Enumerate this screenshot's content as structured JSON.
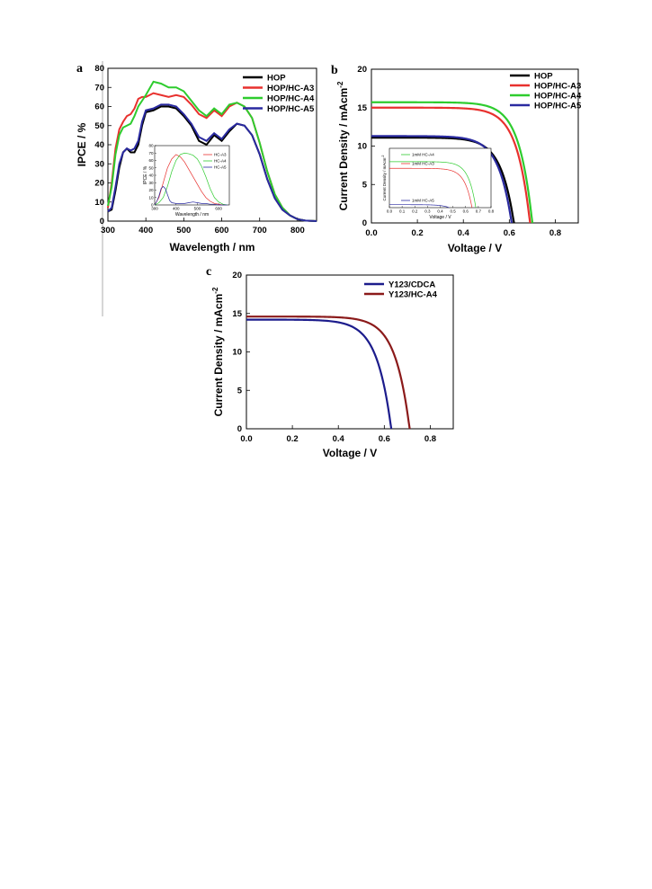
{
  "chart_data": [
    {
      "panel": "a",
      "type": "line",
      "xlabel": "Wavelength / nm",
      "ylabel": "IPCE / %",
      "xlim": [
        300,
        850
      ],
      "ylim": [
        0,
        80
      ],
      "xticks": [
        300,
        400,
        500,
        600,
        700,
        800
      ],
      "yticks": [
        0,
        10,
        20,
        30,
        40,
        50,
        60,
        70,
        80
      ],
      "legend_position": "top-right",
      "series": [
        {
          "name": "HOP",
          "color": "#000000",
          "x": [
            300,
            310,
            320,
            330,
            340,
            350,
            360,
            370,
            380,
            390,
            400,
            420,
            440,
            460,
            480,
            500,
            520,
            540,
            560,
            580,
            600,
            620,
            640,
            660,
            680,
            700,
            720,
            740,
            760,
            780,
            800,
            820,
            850
          ],
          "y": [
            5,
            6,
            16,
            28,
            36,
            38,
            36,
            36,
            40,
            50,
            57,
            58,
            60,
            60,
            59,
            55,
            50,
            42,
            40,
            45,
            42,
            47,
            51,
            50,
            45,
            35,
            22,
            12,
            6,
            3,
            1,
            0.3,
            0
          ]
        },
        {
          "name": "HOP/HC-A3",
          "color": "#e8312e",
          "x": [
            300,
            310,
            320,
            330,
            340,
            350,
            360,
            370,
            380,
            390,
            400,
            420,
            440,
            460,
            480,
            500,
            520,
            540,
            560,
            580,
            600,
            620,
            640,
            660,
            680,
            700,
            720,
            740,
            760,
            780,
            800,
            820,
            850
          ],
          "y": [
            7,
            20,
            38,
            48,
            52,
            55,
            56,
            59,
            64,
            65,
            65,
            67,
            66,
            65,
            66,
            65,
            61,
            56,
            54,
            58,
            55,
            60,
            62,
            60,
            54,
            41,
            26,
            14,
            7,
            3,
            1,
            0.3,
            0
          ]
        },
        {
          "name": "HOP/HC-A4",
          "color": "#2ecc2e",
          "x": [
            300,
            310,
            320,
            330,
            340,
            350,
            360,
            370,
            380,
            390,
            400,
            420,
            440,
            460,
            480,
            500,
            520,
            540,
            560,
            580,
            600,
            620,
            640,
            660,
            680,
            700,
            720,
            740,
            760,
            780,
            800,
            820,
            850
          ],
          "y": [
            8,
            18,
            35,
            45,
            49,
            50,
            51,
            55,
            60,
            63,
            66,
            73,
            72,
            70,
            70,
            68,
            63,
            58,
            55,
            59,
            56,
            61,
            62,
            60,
            54,
            41,
            26,
            14,
            7,
            3,
            1,
            0.3,
            0
          ]
        },
        {
          "name": "HOP/HC-A5",
          "color": "#2a2aa0",
          "x": [
            300,
            310,
            320,
            330,
            340,
            350,
            360,
            370,
            380,
            390,
            400,
            420,
            440,
            460,
            480,
            500,
            520,
            540,
            560,
            580,
            600,
            620,
            640,
            660,
            680,
            700,
            720,
            740,
            760,
            780,
            800,
            820,
            850
          ],
          "y": [
            5,
            7,
            18,
            30,
            36,
            38,
            37,
            38,
            42,
            52,
            58,
            59,
            61,
            61,
            60,
            56,
            51,
            44,
            42,
            46,
            43,
            48,
            51,
            50,
            45,
            35,
            22,
            12,
            6,
            3,
            1,
            0.3,
            0
          ]
        }
      ],
      "inset": {
        "type": "line",
        "xlabel": "Wavelength / nm",
        "ylabel": "IPCE / %",
        "xlim": [
          300,
          650
        ],
        "ylim": [
          0,
          80
        ],
        "xticks": [
          300,
          400,
          500,
          600
        ],
        "yticks": [
          0,
          10,
          20,
          30,
          40,
          50,
          60,
          70,
          80
        ],
        "series": [
          {
            "name": "HC-A3",
            "color": "#e8312e",
            "x": [
              300,
              320,
              340,
              360,
              380,
              400,
              420,
              440,
              460,
              480,
              500,
              520,
              540,
              560,
              580,
              600,
              620,
              640
            ],
            "y": [
              0,
              10,
              30,
              50,
              62,
              68,
              65,
              58,
              48,
              38,
              28,
              18,
              10,
              5,
              2,
              1,
              0,
              0
            ]
          },
          {
            "name": "HC-A4",
            "color": "#2ecc2e",
            "x": [
              300,
              320,
              340,
              360,
              380,
              400,
              420,
              440,
              460,
              480,
              500,
              520,
              540,
              560,
              580,
              600,
              620,
              640
            ],
            "y": [
              0,
              3,
              10,
              25,
              45,
              60,
              68,
              70,
              69,
              67,
              62,
              52,
              38,
              22,
              10,
              4,
              1,
              0
            ]
          },
          {
            "name": "HC-A5",
            "color": "#2a2aa0",
            "x": [
              300,
              310,
              320,
              330,
              340,
              350,
              360,
              370,
              380,
              400,
              420,
              440,
              460,
              480,
              500,
              520,
              540,
              560,
              580,
              600,
              620,
              640
            ],
            "y": [
              0,
              5,
              12,
              22,
              25,
              22,
              14,
              6,
              3,
              2,
              2,
              2,
              3,
              4,
              3,
              2,
              2,
              1,
              1,
              0,
              0,
              0
            ]
          }
        ]
      }
    },
    {
      "panel": "b",
      "type": "line",
      "xlabel": "Voltage / V",
      "ylabel": "Current Density / mAcm",
      "ylabel_sup": "-2",
      "xlim": [
        0.0,
        0.9
      ],
      "ylim": [
        0,
        20
      ],
      "xticks": [
        "0.0",
        "0.2",
        "0.4",
        "0.6",
        "0.8"
      ],
      "yticks": [
        0,
        5,
        10,
        15,
        20
      ],
      "legend_position": "top-right",
      "series": [
        {
          "name": "HOP",
          "color": "#000000",
          "jsc": 11.1,
          "voc": 0.62,
          "n": 2.2
        },
        {
          "name": "HOP/HC-A3",
          "color": "#e8312e",
          "jsc": 15.0,
          "voc": 0.69,
          "n": 2.2
        },
        {
          "name": "HOP/HC-A4",
          "color": "#2ecc2e",
          "jsc": 15.7,
          "voc": 0.7,
          "n": 2.2
        },
        {
          "name": "HOP/HC-A5",
          "color": "#2a2aa0",
          "jsc": 11.3,
          "voc": 0.61,
          "n": 2.2
        }
      ],
      "inset": {
        "xlabel": "Voltage / V",
        "ylabel": "Current Density / mAcm",
        "ylabel_sup": "-2",
        "xlim": [
          0.0,
          0.8
        ],
        "ylim": [
          0,
          8
        ],
        "xticks": [
          "0.0",
          "0.1",
          "0.2",
          "0.3",
          "0.4",
          "0.5",
          "0.6",
          "0.7",
          "0.8"
        ],
        "series": [
          {
            "name": "1mM HC-A4",
            "color": "#2ecc2e",
            "jsc": 6.2,
            "voc": 0.68,
            "n": 2.2
          },
          {
            "name": "1mM HC-A3",
            "color": "#e8312e",
            "jsc": 5.3,
            "voc": 0.65,
            "n": 2.2
          },
          {
            "name": "1mM HC-A5",
            "color": "#2a2aa0",
            "jsc": 0.4,
            "voc": 0.47,
            "n": 2.2
          }
        ]
      }
    },
    {
      "panel": "c",
      "type": "line",
      "xlabel": "Voltage / V",
      "ylabel": "Current Density / mAcm",
      "ylabel_sup": "-2",
      "xlim": [
        0.0,
        0.9
      ],
      "ylim": [
        0,
        20
      ],
      "xticks": [
        "0.0",
        "0.2",
        "0.4",
        "0.6",
        "0.8"
      ],
      "yticks": [
        0,
        5,
        10,
        15,
        20
      ],
      "legend_position": "top-right",
      "series": [
        {
          "name": "Y123/CDCA",
          "color": "#1c1c8c",
          "jsc": 14.2,
          "voc": 0.63,
          "n": 2.4
        },
        {
          "name": "Y123/HC-A4",
          "color": "#8b1a1a",
          "jsc": 14.6,
          "voc": 0.71,
          "n": 2.4
        }
      ]
    }
  ]
}
